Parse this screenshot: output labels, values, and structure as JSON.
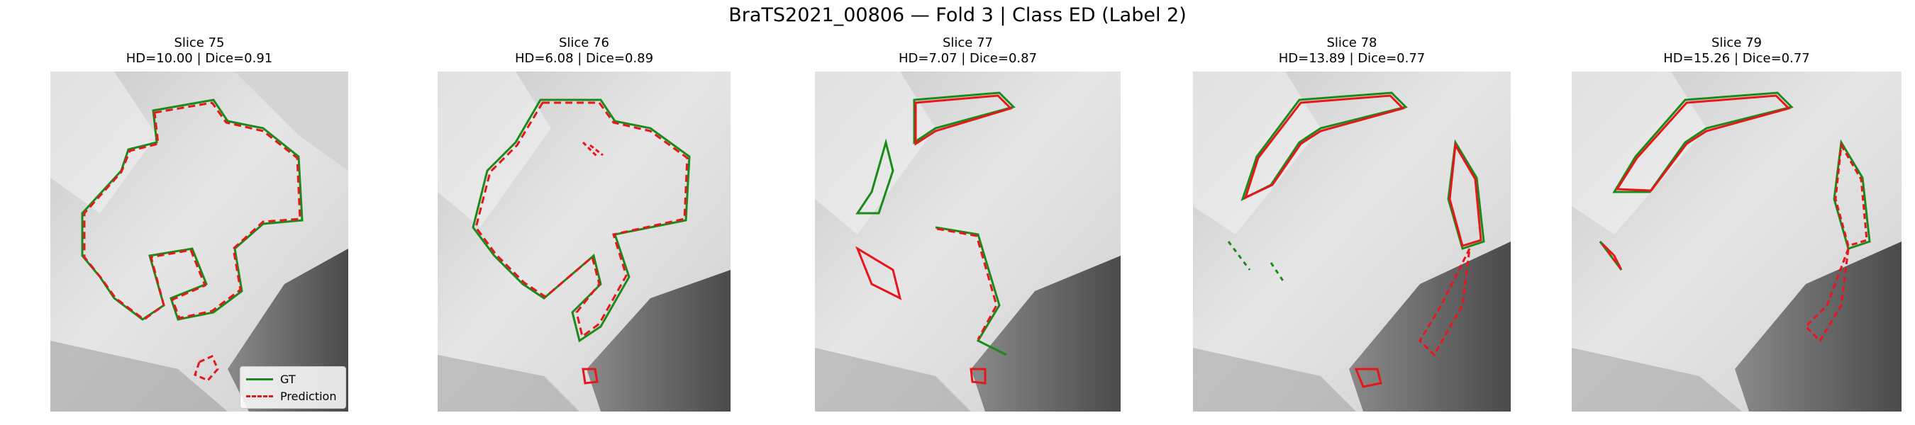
{
  "figure": {
    "title": "BraTS2021_00806 — Fold 3 | Class ED (Label 2)"
  },
  "panels": [
    {
      "slice": "Slice 75",
      "metrics": "HD=10.00 | Dice=0.91"
    },
    {
      "slice": "Slice 76",
      "metrics": "HD=6.08 | Dice=0.89"
    },
    {
      "slice": "Slice 77",
      "metrics": "HD=7.07 | Dice=0.87"
    },
    {
      "slice": "Slice 78",
      "metrics": "HD=13.89 | Dice=0.77"
    },
    {
      "slice": "Slice 79",
      "metrics": "HD=15.26 | Dice=0.77"
    }
  ],
  "legend": {
    "gt_label": "GT",
    "pred_label": "Prediction"
  },
  "colors": {
    "gt": "#1a8a1a",
    "prediction": "#e8151b"
  }
}
